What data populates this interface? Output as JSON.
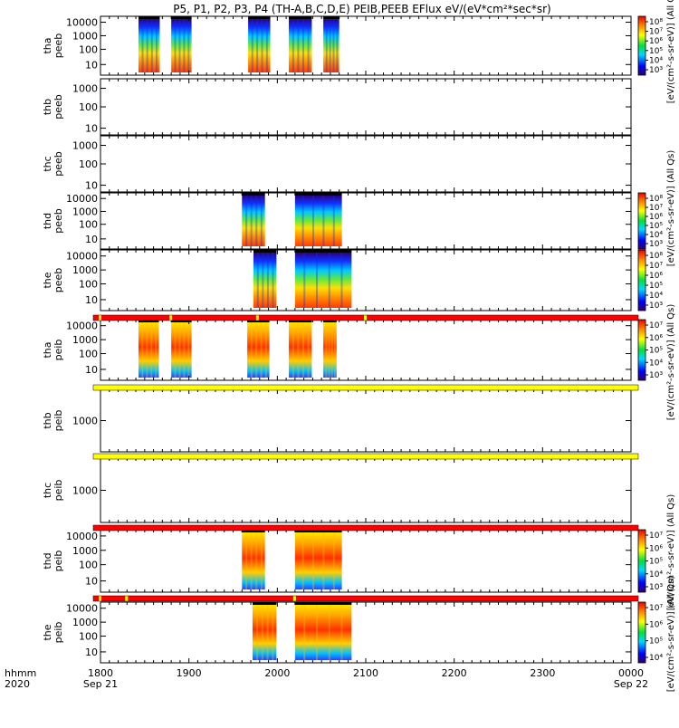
{
  "title": "P5, P1, P2, P3, P4 (TH-A,B,C,D,E) PEIB,PEEB EFlux eV/(eV*cm²*sec*sr)",
  "chart_data": {
    "type": "heatmap",
    "title": "P5, P1, P2, P3, P4 (TH-A,B,C,D,E) PEIB,PEEB EFlux eV/(eV*cm²*sec*sr)",
    "x_ticks": [
      "1800",
      "1900",
      "2000",
      "2100",
      "2200",
      "2300",
      "0000"
    ],
    "x_date_labels": {
      "start": "Sep 21",
      "end": "Sep 22"
    },
    "x_axis_caption": [
      "hhmm",
      "2020"
    ],
    "xlim": [
      1800,
      2400
    ],
    "y_scale": "log",
    "colormap": "rainbow",
    "panels": [
      {
        "id": "tha_peeb",
        "label": [
          "tha",
          "peeb"
        ],
        "y_ticks": [
          "10000",
          "1000",
          "100",
          "10"
        ],
        "segments": [
          [
            1843,
            1867
          ],
          [
            1880,
            1903
          ],
          [
            1967,
            1992
          ],
          [
            2013,
            2039
          ],
          [
            2052,
            2070
          ]
        ],
        "cbar_ticks": [
          "10⁸",
          "10⁷",
          "10⁶",
          "10⁵",
          "10⁴",
          "10³"
        ],
        "cbar_label": "[eV/(cm²-s-sr-eV)] (All Qs)"
      },
      {
        "id": "thb_peeb",
        "label": [
          "thb",
          "peeb"
        ],
        "y_ticks": [
          "1000",
          "100",
          "10"
        ],
        "segments": [],
        "cbar_ticks": [],
        "cbar_label": "[eV/(cm²-s-sr-eV)] (All Qs)"
      },
      {
        "id": "thc_peeb",
        "label": [
          "thc",
          "peeb"
        ],
        "y_ticks": [
          "1000",
          "100",
          "10"
        ],
        "segments": [],
        "cbar_ticks": [],
        "cbar_label": "[eV/(cm²-s-sr-eV)] (All Qs)"
      },
      {
        "id": "thd_peeb",
        "label": [
          "thd",
          "peeb"
        ],
        "y_ticks": [
          "10000",
          "1000",
          "100",
          "10"
        ],
        "segments": [
          [
            1960,
            1986
          ],
          [
            2020,
            2073
          ]
        ],
        "cbar_ticks": [
          "10⁸",
          "10⁷",
          "10⁶",
          "10⁵",
          "10⁴",
          "10³"
        ],
        "cbar_label": "[eV/(cm²-s-sr-eV)] (All Qs)"
      },
      {
        "id": "the_peeb",
        "label": [
          "the",
          "peeb"
        ],
        "y_ticks": [
          "10000",
          "1000",
          "100",
          "10"
        ],
        "segments": [
          [
            1973,
            1999
          ],
          [
            2020,
            2084
          ]
        ],
        "cbar_ticks": [
          "10⁸",
          "10⁷",
          "10⁶",
          "10⁵",
          "10⁴",
          "10³"
        ],
        "cbar_label": "[eV/(cm²-s-sr-eV)] (All Qs)"
      },
      {
        "id": "tha_peib",
        "label": [
          "tha",
          "peib"
        ],
        "y_ticks": [
          "10000",
          "1000",
          "100",
          "10"
        ],
        "segments": [
          [
            1843,
            1866
          ],
          [
            1880,
            1903
          ],
          [
            1966,
            1991
          ],
          [
            2013,
            2039
          ],
          [
            2052,
            2067
          ]
        ],
        "cbar_ticks": [
          "10⁷",
          "10⁶",
          "10⁵",
          "10⁴",
          "10³"
        ],
        "cbar_label": "[eV/(cm²-s-sr-eV)] (All Qs)"
      },
      {
        "id": "thb_peib",
        "label": [
          "thb",
          "peib"
        ],
        "y_ticks": [
          "1000"
        ],
        "segments": [],
        "cbar_ticks": [],
        "cbar_label": "[eV/(cm²-s-sr-eV)] (All Qs)"
      },
      {
        "id": "thc_peib",
        "label": [
          "thc",
          "peib"
        ],
        "y_ticks": [
          "1000"
        ],
        "segments": [],
        "cbar_ticks": [],
        "cbar_label": "[eV/(cm²-s-sr-eV)] (All Qs)"
      },
      {
        "id": "thd_peib",
        "label": [
          "thd",
          "peib"
        ],
        "y_ticks": [
          "10000",
          "1000",
          "100",
          "10"
        ],
        "segments": [
          [
            1960,
            1986
          ],
          [
            2020,
            2073
          ]
        ],
        "cbar_ticks": [
          "10⁷",
          "10⁶",
          "10⁵",
          "10⁴",
          "10³"
        ],
        "cbar_label": "[eV/(cm²-s-sr-eV)] (All Qs)"
      },
      {
        "id": "the_peib",
        "label": [
          "the",
          "peib"
        ],
        "y_ticks": [
          "10000",
          "1000",
          "100",
          "10"
        ],
        "segments": [
          [
            1972,
            1999
          ],
          [
            2020,
            2084
          ]
        ],
        "cbar_ticks": [
          "10⁷",
          "10⁶",
          "10⁵",
          "10⁴"
        ],
        "cbar_label": "[eV/(cm²-s-sr-eV)] (All Qs)"
      }
    ],
    "flag_bars": [
      {
        "after_panel": 5,
        "color": "#ff0000",
        "yellow_marks": [
          1800,
          1880,
          1978,
          2100
        ]
      },
      {
        "after_panel": 6,
        "color": "#ffff00",
        "yellow_marks": []
      },
      {
        "after_panel": 7,
        "color": "#ffff00",
        "yellow_marks": []
      },
      {
        "after_panel": 8,
        "color": "#ff0000",
        "yellow_marks": []
      },
      {
        "after_panel": 9,
        "color": "#ff0000",
        "yellow_marks": [
          1800,
          1830,
          2020
        ]
      }
    ]
  }
}
